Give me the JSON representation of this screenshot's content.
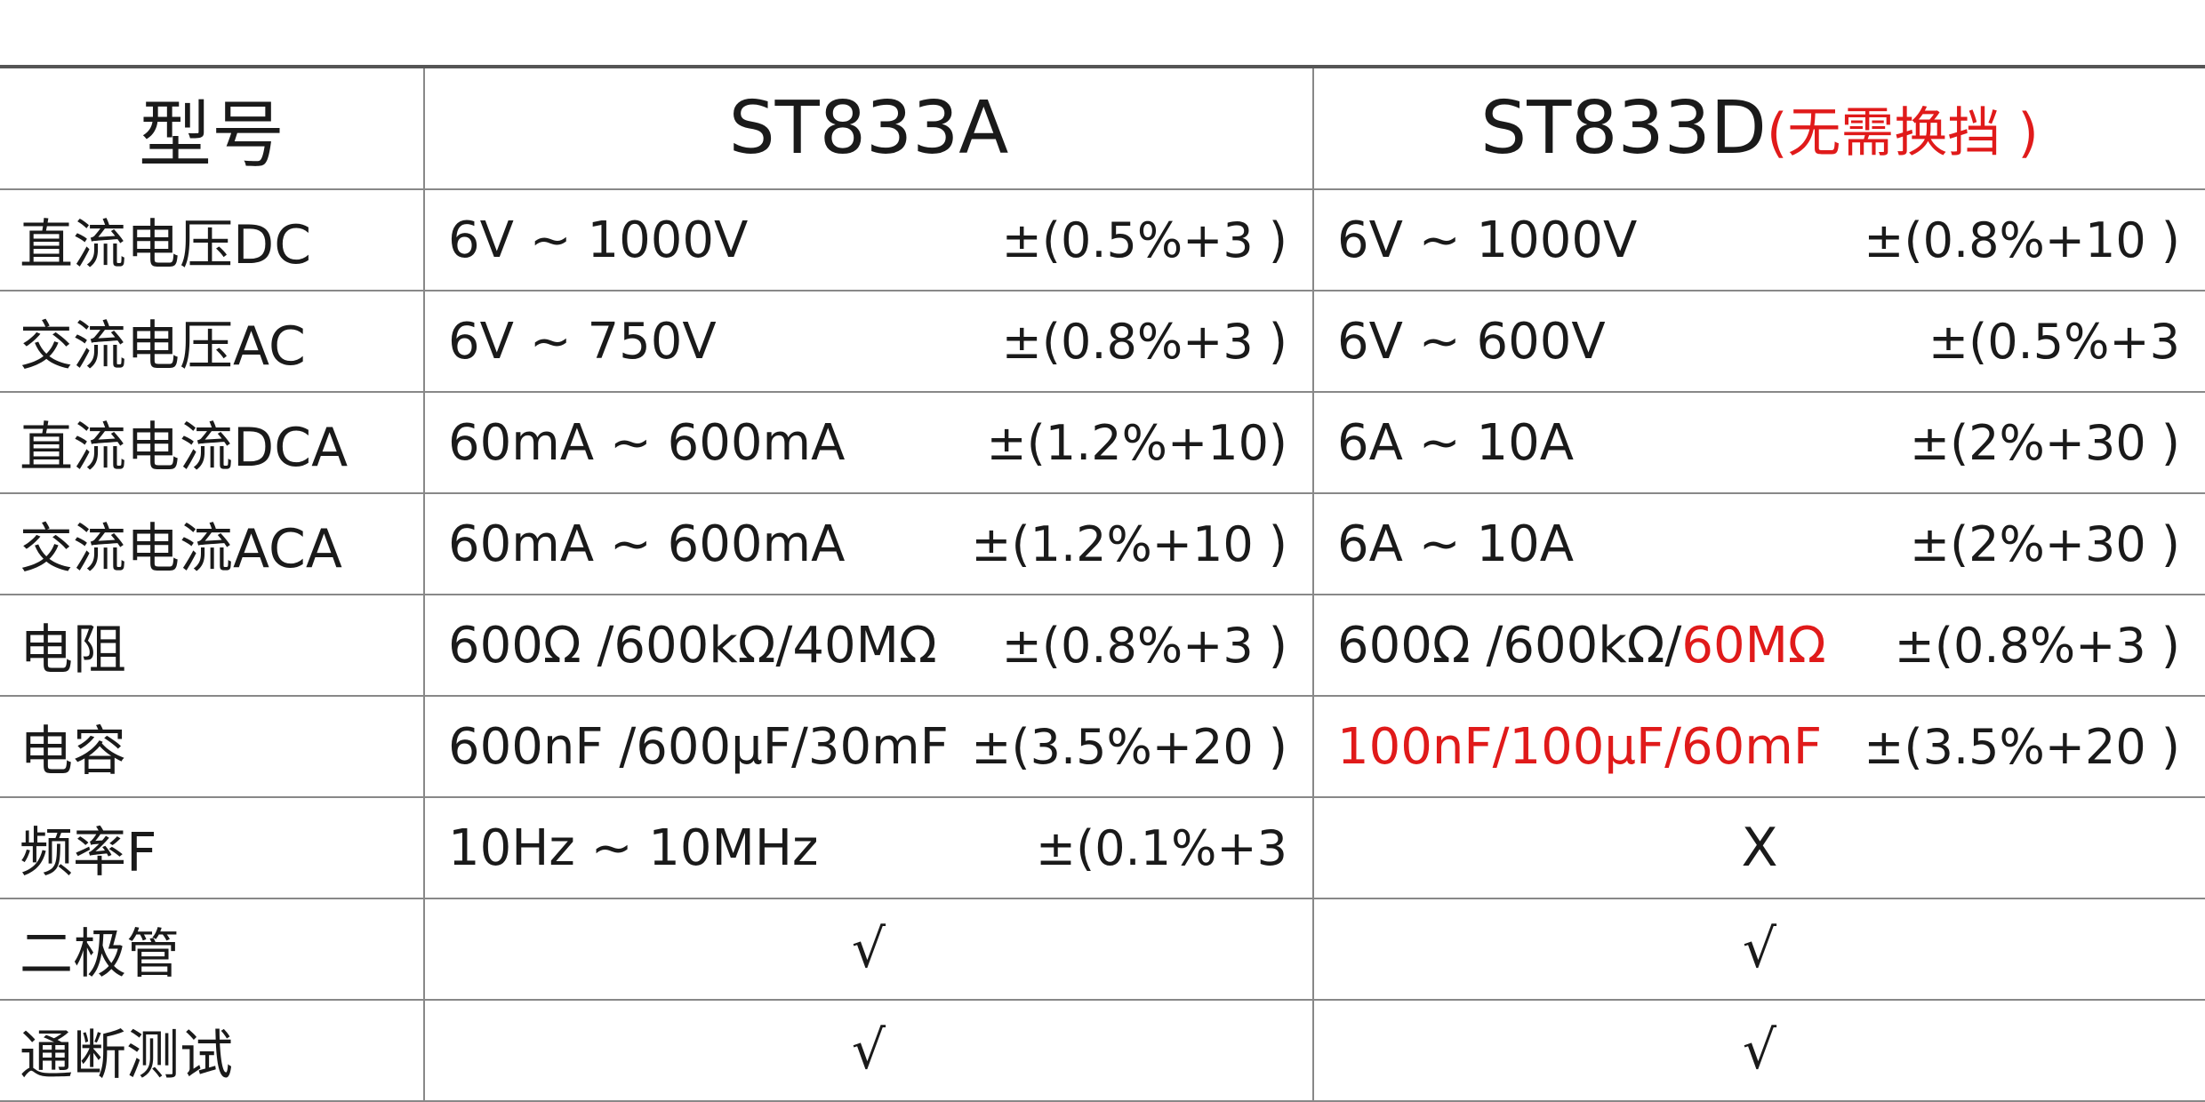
{
  "table": {
    "header": {
      "label": "型号",
      "a": {
        "model": "ST833A"
      },
      "d": {
        "model": "ST833D",
        "note": "(无需换挡 )"
      }
    },
    "rows": [
      {
        "label": "直流电压DC",
        "a": {
          "range": "6V ~ 1000V",
          "accuracy": "±(0.5%+3 )"
        },
        "d": {
          "range": "6V ~ 1000V",
          "accuracy": "±(0.8%+10 )"
        }
      },
      {
        "label": "交流电压AC",
        "a": {
          "range": "6V ~ 750V",
          "accuracy": "±(0.8%+3 )"
        },
        "d": {
          "range": "6V ~ 600V",
          "accuracy": "±(0.5%+3"
        }
      },
      {
        "label": "直流电流DCA",
        "a": {
          "range": "60mA ~ 600mA",
          "accuracy": "±(1.2%+10)"
        },
        "d": {
          "range": "6A ~ 10A",
          "accuracy": "±(2%+30 )"
        }
      },
      {
        "label": "交流电流ACA",
        "a": {
          "range": "60mA ~ 600mA",
          "accuracy": "±(1.2%+10 )"
        },
        "d": {
          "range": "6A ~ 10A",
          "accuracy": "±(2%+30 )"
        }
      },
      {
        "label": "电阻",
        "a": {
          "range": "600Ω /600kΩ/40MΩ",
          "accuracy": "±(0.8%+3 )"
        },
        "d": {
          "range": "600Ω /600kΩ/",
          "highlight": "60MΩ",
          "accuracy": "±(0.8%+3 )"
        }
      },
      {
        "label": "电容",
        "a": {
          "range": "600nF /600μF/30mF",
          "accuracy": "±(3.5%+20 )"
        },
        "d": {
          "highlight": "100nF/100μF/60mF",
          "accuracy": "±(3.5%+20 )"
        }
      },
      {
        "label": "频率F",
        "a": {
          "range": "10Hz ~ 10MHz",
          "accuracy": "±(0.1%+3"
        },
        "d": {
          "center": "X"
        }
      },
      {
        "label": "二极管",
        "a": {
          "center": "√"
        },
        "d": {
          "center": "√"
        }
      },
      {
        "label": "通断测试",
        "a": {
          "center": "√"
        },
        "d": {
          "center": "√"
        }
      }
    ]
  }
}
